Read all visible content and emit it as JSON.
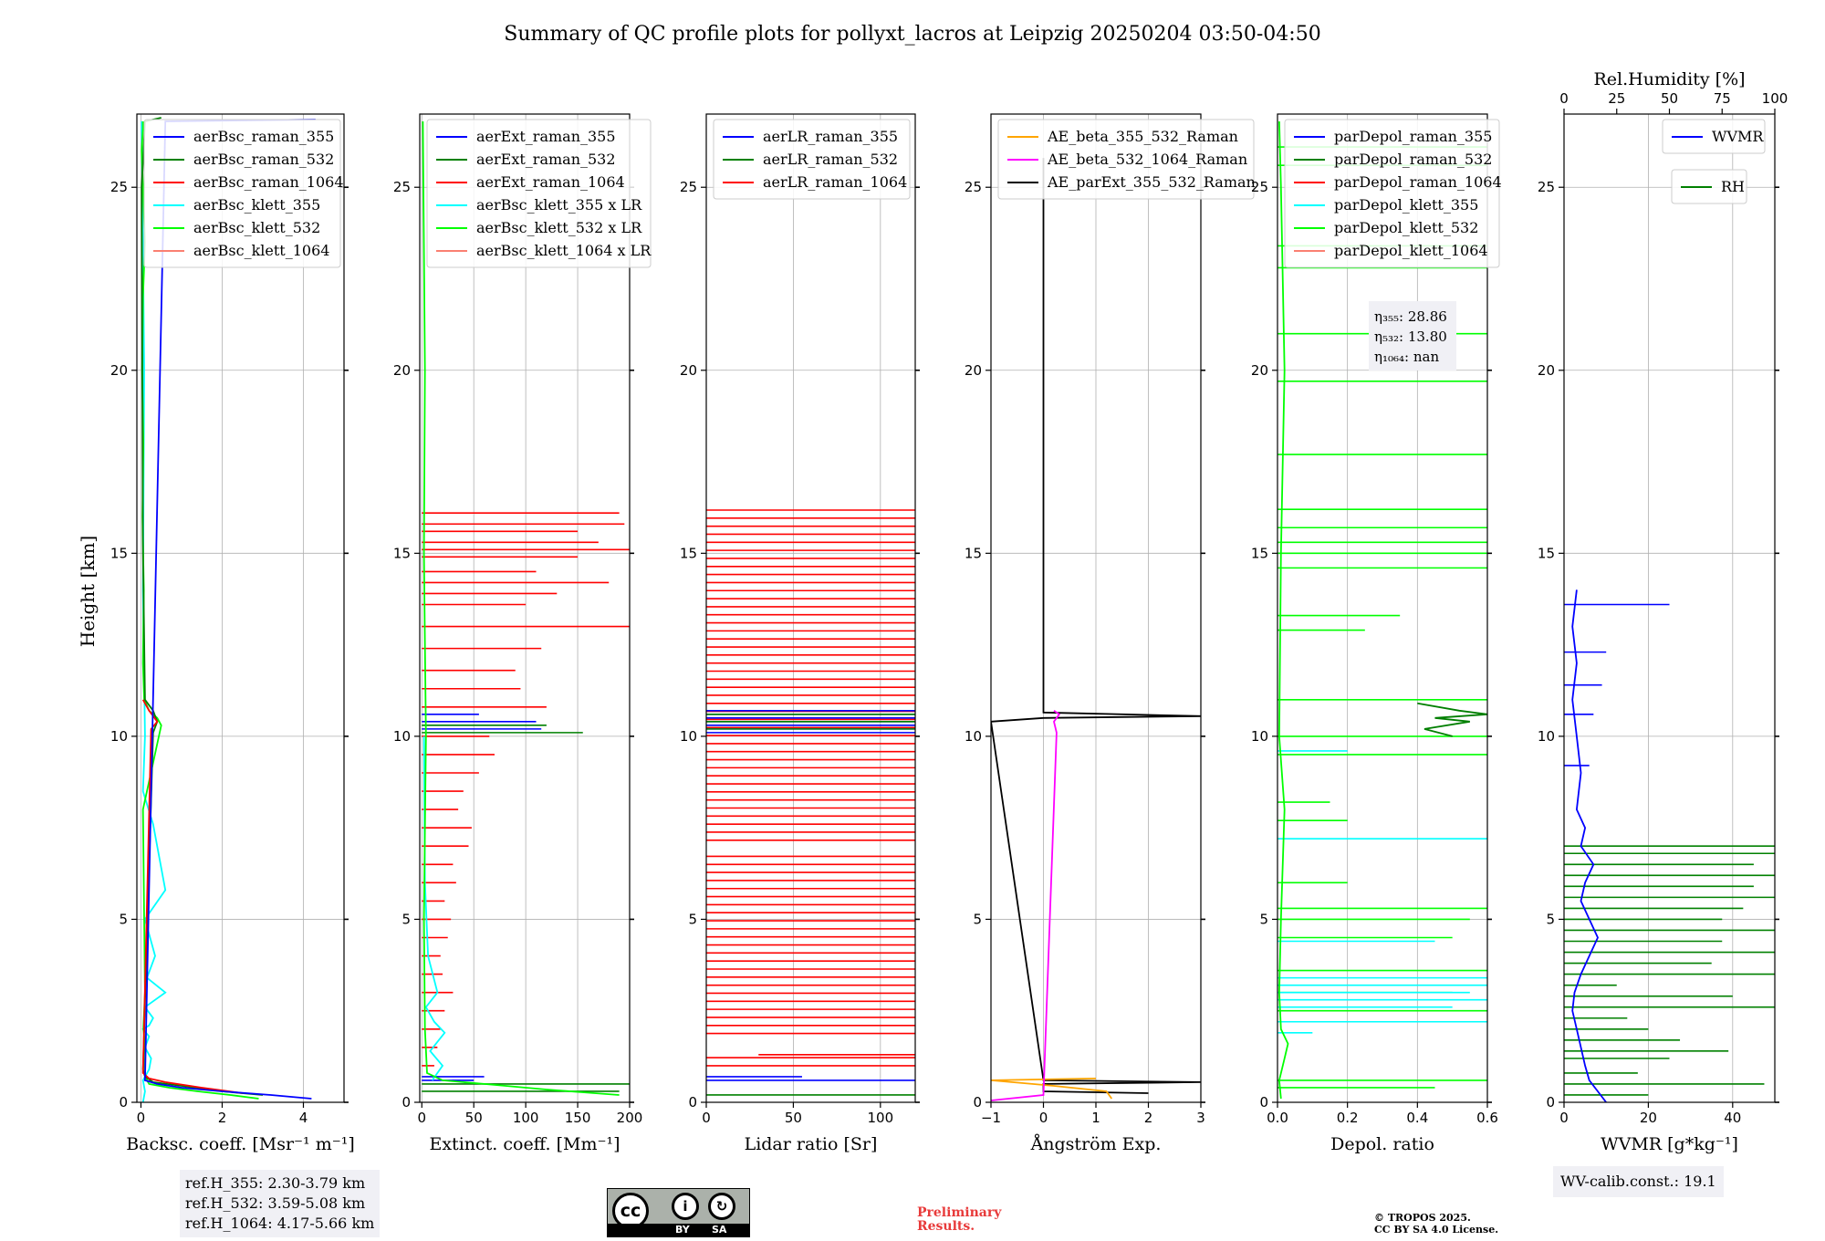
{
  "title": "Summary of QC profile plots for pollyxt_lacros at Leipzig 20250204 03:50-04:50",
  "ylabel": "Height [km]",
  "colors": {
    "blue": "#0000ff",
    "green": "#008000",
    "red": "#ff0000",
    "cyan": "#00ffff",
    "lime": "#00ff00",
    "salmon": "#fa8072",
    "orange": "#ffa500",
    "magenta": "#ff00ff",
    "black": "#000000",
    "darkgreen": "#007f00"
  },
  "chart_data": [
    {
      "type": "line",
      "id": "bsc",
      "xlabel": "Backsc. coeff. [Msr⁻¹ m⁻¹]",
      "xlim": [
        -0.1,
        5
      ],
      "ylim": [
        0,
        27
      ],
      "xticks": [
        0,
        2,
        4
      ],
      "xticklabels": [
        "0",
        "2",
        "4"
      ],
      "yticks": [
        0,
        5,
        10,
        15,
        20,
        25
      ],
      "yticklabels": [
        "0",
        "5",
        "10",
        "15",
        "20",
        "25"
      ],
      "legend": [
        "aerBsc_raman_355",
        "aerBsc_raman_532",
        "aerBsc_raman_1064",
        "aerBsc_klett_355",
        "aerBsc_klett_532",
        "aerBsc_klett_1064"
      ],
      "legend_colors": [
        "blue",
        "green",
        "red",
        "cyan",
        "lime",
        "salmon"
      ],
      "series": [
        {
          "name": "aerBsc_klett_355",
          "color": "cyan",
          "x": [
            0.05,
            0.1,
            0.05,
            0.2,
            0.25,
            0.1,
            0.2,
            0.05,
            0.2,
            0.3,
            0.1,
            0.6,
            0.15,
            0.35,
            0.1,
            0.6,
            0.3,
            0.05,
            0.1,
            0.05,
            0.08,
            0.02
          ],
          "y": [
            0,
            0.3,
            0.6,
            0.9,
            1.2,
            1.5,
            1.8,
            2.0,
            2.1,
            2.3,
            2.6,
            3.0,
            3.4,
            4.0,
            5.0,
            5.8,
            7.6,
            8.5,
            10.0,
            14.0,
            20.0,
            26.8
          ]
        },
        {
          "name": "aerBsc_klett_532",
          "color": "lime",
          "x": [
            2.9,
            2.2,
            1.4,
            0.7,
            0.2,
            0.15,
            0.1,
            0.07,
            0.1,
            0.06,
            0.1,
            0.08,
            0.05,
            0.5,
            0.4,
            0.2,
            0.08,
            0.05,
            0.07,
            0.04,
            0.06,
            0.03,
            0.05,
            0.1,
            0.05,
            0.02,
            0.05,
            0.05
          ],
          "y": [
            0.1,
            0.2,
            0.3,
            0.4,
            0.5,
            0.6,
            0.8,
            1.2,
            1.6,
            2.0,
            3.0,
            5.0,
            8.0,
            10.3,
            10.5,
            10.7,
            11.0,
            12.0,
            14.0,
            16.0,
            18.0,
            20.0,
            22.0,
            23.5,
            25.0,
            26.0,
            26.6,
            26.8
          ]
        },
        {
          "name": "aerBsc_raman_532",
          "color": "green",
          "x": [
            3.0,
            2.0,
            1.0,
            0.3,
            0.1,
            0.05,
            0.3,
            0.4,
            0.3,
            0.1,
            0.05,
            0.02,
            0.1,
            0.5
          ],
          "y": [
            0.2,
            0.3,
            0.45,
            0.55,
            0.7,
            0.9,
            10.1,
            10.4,
            10.7,
            11.0,
            15.0,
            25.0,
            26.8,
            26.9
          ]
        },
        {
          "name": "aerBsc_raman_1064",
          "color": "red",
          "x": [
            2.5,
            1.5,
            0.6,
            0.2,
            0.05,
            0.25,
            0.4,
            0.2,
            0.05
          ],
          "y": [
            0.25,
            0.4,
            0.55,
            0.65,
            0.8,
            10.2,
            10.4,
            10.7,
            11.0
          ]
        },
        {
          "name": "aerBsc_raman_355",
          "color": "blue",
          "x": [
            4.2,
            3.2,
            2.0,
            1.0,
            0.4,
            0.1,
            0.6,
            4.3
          ],
          "y": [
            0.1,
            0.2,
            0.3,
            0.4,
            0.5,
            0.6,
            26.8,
            26.85
          ]
        }
      ]
    },
    {
      "type": "line",
      "id": "ext",
      "xlabel": "Extinct. coeff. [Mm⁻¹]",
      "xlim": [
        -2,
        200
      ],
      "ylim": [
        0,
        27
      ],
      "xticks": [
        0,
        50,
        100,
        150,
        200
      ],
      "xticklabels": [
        "0",
        "50",
        "100",
        "150",
        "200"
      ],
      "yticks": [
        0,
        5,
        10,
        15,
        20,
        25
      ],
      "yticklabels": [
        "0",
        "5",
        "10",
        "15",
        "20",
        "25"
      ],
      "legend": [
        "aerExt_raman_355",
        "aerExt_raman_532",
        "aerExt_raman_1064",
        "aerBsc_klett_355 x LR",
        "aerBsc_klett_532 x LR",
        "aerBsc_klett_1064 x LR"
      ],
      "legend_colors": [
        "blue",
        "green",
        "red",
        "cyan",
        "lime",
        "salmon"
      ],
      "series": [
        {
          "name": "aerBsc_klett_355 x LR",
          "color": "cyan",
          "x": [
            10,
            20,
            8,
            22,
            12,
            4,
            15,
            6,
            3,
            2
          ],
          "y": [
            0.6,
            1.0,
            1.4,
            1.9,
            2.2,
            2.6,
            3.0,
            4.0,
            6.0,
            10.0
          ]
        },
        {
          "name": "aerBsc_klett_532 x LR",
          "color": "lime",
          "x": [
            190,
            120,
            60,
            20,
            5,
            3,
            2,
            4,
            2,
            3,
            1
          ],
          "y": [
            0.2,
            0.35,
            0.5,
            0.6,
            0.8,
            2.0,
            5.0,
            10.0,
            15.0,
            20.0,
            26.8
          ]
        }
      ],
      "spikes": [
        {
          "color": "red",
          "y": [
            16.1,
            15.8,
            15.6,
            15.3,
            15.1,
            14.9,
            14.5,
            14.2,
            13.9,
            13.6,
            13.0,
            12.4,
            11.8,
            11.3,
            10.8,
            10.0,
            9.5,
            9.0,
            8.5,
            8.0,
            7.5,
            7.0,
            6.5,
            6.0,
            5.5,
            5.0,
            4.5,
            4.0,
            3.5,
            3.0,
            2.5,
            2.0,
            1.5,
            1.0
          ],
          "x": [
            190,
            195,
            150,
            170,
            200,
            150,
            110,
            180,
            130,
            100,
            200,
            115,
            90,
            95,
            120,
            65,
            70,
            55,
            40,
            35,
            48,
            45,
            30,
            33,
            22,
            28,
            25,
            18,
            20,
            30,
            22,
            18,
            15,
            12
          ]
        },
        {
          "color": "blue",
          "y": [
            10.6,
            10.4,
            10.2,
            0.7,
            0.6
          ],
          "x": [
            55,
            110,
            115,
            60,
            50
          ]
        },
        {
          "color": "green",
          "y": [
            10.1,
            10.3,
            0.5,
            0.3
          ],
          "x": [
            155,
            120,
            200,
            190
          ]
        }
      ]
    },
    {
      "type": "line",
      "id": "lr",
      "xlabel": "Lidar ratio [Sr]",
      "xlim": [
        0,
        120
      ],
      "ylim": [
        0,
        27
      ],
      "xticks": [
        0,
        50,
        100
      ],
      "xticklabels": [
        "0",
        "50",
        "100"
      ],
      "yticks": [
        0,
        5,
        10,
        15,
        20,
        25
      ],
      "yticklabels": [
        "0",
        "5",
        "10",
        "15",
        "20",
        "25"
      ],
      "legend": [
        "aerLR_raman_355",
        "aerLR_raman_532",
        "aerLR_raman_1064"
      ],
      "legend_colors": [
        "blue",
        "green",
        "red"
      ],
      "hbands": [
        {
          "color": "red",
          "from": 1.0,
          "to": 16.2,
          "step": 0.22,
          "skip": [
            [
              6.9,
              7.1
            ],
            [
              1.4,
              1.8
            ]
          ]
        },
        {
          "color": "blue",
          "from": 10.1,
          "to": 10.7,
          "step": 0.1
        },
        {
          "color": "green",
          "from": 10.2,
          "to": 10.6,
          "step": 0.2
        }
      ],
      "singles": [
        {
          "color": "red",
          "y": 1.3,
          "x0": 30,
          "x1": 120
        },
        {
          "color": "blue",
          "y": 0.6,
          "x0": 0,
          "x1": 120
        },
        {
          "color": "blue",
          "y": 0.7,
          "x0": 0,
          "x1": 55
        },
        {
          "color": "green",
          "y": 0.2,
          "x0": 0,
          "x1": 120
        }
      ]
    },
    {
      "type": "line",
      "id": "ae",
      "xlabel": "Ångström Exp.",
      "xlim": [
        -1,
        3
      ],
      "ylim": [
        0,
        27
      ],
      "xticks": [
        -1,
        0,
        1,
        2,
        3
      ],
      "xticklabels": [
        "−1",
        "0",
        "1",
        "2",
        "3"
      ],
      "yticks": [
        0,
        5,
        10,
        15,
        20,
        25
      ],
      "yticklabels": [
        "0",
        "5",
        "10",
        "15",
        "20",
        "25"
      ],
      "legend": [
        "AE_beta_355_532_Raman",
        "AE_beta_532_1064_Raman",
        "AE_parExt_355_532_Raman"
      ],
      "legend_colors": [
        "orange",
        "magenta",
        "black"
      ],
      "series": [
        {
          "name": "AE_parExt_355_532_Raman",
          "color": "black",
          "x": [
            2.0,
            0.0,
            0.0,
            3.0,
            0.0,
            -1.0,
            0.0,
            3.0,
            0.0,
            0.0
          ],
          "y": [
            0.25,
            0.3,
            0.5,
            0.55,
            0.6,
            10.4,
            10.5,
            10.55,
            10.65,
            25.8
          ]
        },
        {
          "name": "AE_beta_355_532_Raman",
          "color": "orange",
          "x": [
            1.3,
            1.2,
            0.2,
            -1.0,
            1.0
          ],
          "y": [
            0.1,
            0.3,
            0.45,
            0.6,
            0.65
          ]
        },
        {
          "name": "AE_beta_532_1064_Raman",
          "color": "magenta",
          "x": [
            -1.0,
            0.0,
            0.25,
            0.2,
            0.3,
            0.2
          ],
          "y": [
            0.05,
            0.2,
            10.1,
            10.4,
            10.6,
            10.7
          ]
        }
      ]
    },
    {
      "type": "line",
      "id": "depol",
      "xlabel": "Depol. ratio",
      "xlim": [
        0,
        0.6
      ],
      "ylim": [
        0,
        27
      ],
      "xticks": [
        0,
        0.2,
        0.4,
        0.6
      ],
      "xticklabels": [
        "0.0",
        "0.2",
        "0.4",
        "0.6"
      ],
      "yticks": [
        0,
        5,
        10,
        15,
        20,
        25
      ],
      "yticklabels": [
        "0",
        "5",
        "10",
        "15",
        "20",
        "25"
      ],
      "legend": [
        "parDepol_raman_355",
        "parDepol_raman_532",
        "parDepol_raman_1064",
        "parDepol_klett_355",
        "parDepol_klett_532",
        "parDepol_klett_1064"
      ],
      "legend_colors": [
        "blue",
        "green",
        "red",
        "cyan",
        "lime",
        "salmon"
      ],
      "annotation": [
        "η₃₅₅: 28.86",
        "η₅₃₂: 13.80",
        "η₁₀₆₄: nan"
      ],
      "series": [
        {
          "name": "parDepol_klett_532",
          "color": "lime",
          "x": [
            0.01,
            0.005,
            0.02,
            0.03,
            0.01,
            0.005,
            0.01,
            0.02,
            0.005,
            0.01,
            0.02,
            0.01,
            0.005
          ],
          "y": [
            0.1,
            0.6,
            1.2,
            1.6,
            2.0,
            3.0,
            5.0,
            8.0,
            10.0,
            15.0,
            20.0,
            25.0,
            26.8
          ]
        },
        {
          "name": "parDepol_raman_532",
          "color": "darkgreen",
          "x": [
            0.5,
            0.42,
            0.55,
            0.45,
            0.6,
            0.52,
            0.4
          ],
          "y": [
            10.0,
            10.2,
            10.4,
            10.5,
            10.6,
            10.7,
            10.9
          ]
        }
      ],
      "spikes": [
        {
          "color": "lime",
          "y": [
            26.1,
            25.6,
            23.4,
            22.8,
            21.0,
            19.7,
            17.7,
            16.2,
            15.7,
            15.3,
            15.0,
            14.6,
            13.3,
            12.9,
            11.0,
            10.0,
            9.5,
            8.2,
            7.7,
            6.0,
            5.3,
            5.0,
            4.5,
            3.6,
            3.0,
            2.5,
            0.6,
            0.4
          ],
          "x": [
            0.6,
            0.6,
            0.6,
            0.6,
            0.6,
            0.6,
            0.6,
            0.6,
            0.6,
            0.6,
            0.6,
            0.6,
            0.35,
            0.25,
            0.6,
            0.6,
            0.6,
            0.15,
            0.2,
            0.2,
            0.6,
            0.55,
            0.5,
            0.6,
            0.5,
            0.6,
            0.6,
            0.45
          ]
        },
        {
          "color": "cyan",
          "y": [
            9.6,
            7.2,
            4.4,
            3.4,
            3.2,
            3.0,
            2.8,
            2.6,
            2.2,
            1.9
          ],
          "x": [
            0.2,
            0.6,
            0.45,
            0.6,
            0.6,
            0.55,
            0.6,
            0.5,
            0.6,
            0.1
          ]
        }
      ]
    },
    {
      "type": "line",
      "id": "wv",
      "xlabel": "WVMR [g*kg⁻¹]",
      "x2label": "Rel.Humidity [%]",
      "xlim": [
        0,
        50
      ],
      "ylim": [
        0,
        27
      ],
      "x2lim": [
        0,
        100
      ],
      "xticks": [
        0,
        20,
        40
      ],
      "xticklabels": [
        "0",
        "20",
        "40"
      ],
      "x2ticks": [
        0,
        25,
        50,
        75,
        100
      ],
      "x2ticklabels": [
        "0",
        "25",
        "50",
        "75",
        "100"
      ],
      "yticks": [
        0,
        5,
        10,
        15,
        20,
        25
      ],
      "yticklabels": [
        "0",
        "5",
        "10",
        "15",
        "20",
        "25"
      ],
      "legend": [
        "WVMR"
      ],
      "legend_colors": [
        "blue"
      ],
      "legend2": [
        "RH"
      ],
      "legend2_colors": [
        "green"
      ],
      "series": [
        {
          "name": "WVMR",
          "color": "blue",
          "x": [
            10,
            8,
            6,
            5,
            4,
            3,
            2,
            2.5,
            4,
            6,
            8,
            6,
            4,
            5,
            7,
            4,
            5,
            3,
            4,
            3,
            2,
            3,
            2,
            3
          ],
          "y": [
            0,
            0.3,
            0.6,
            1.0,
            1.5,
            2.0,
            2.5,
            3.0,
            3.5,
            4.0,
            4.5,
            5.0,
            5.5,
            6.0,
            6.5,
            7.0,
            7.5,
            8.0,
            9.0,
            10.0,
            11.0,
            12.0,
            13.0,
            14.0
          ]
        }
      ],
      "spikes2": [
        {
          "color": "green",
          "y": [
            0.2,
            0.5,
            0.8,
            1.2,
            1.4,
            1.7,
            2.0,
            2.3,
            2.6,
            2.9,
            3.2,
            3.5,
            3.8,
            4.1,
            4.4,
            4.7,
            5.0,
            5.3,
            5.6,
            5.9,
            6.2,
            6.5,
            6.8,
            7.0
          ],
          "x": [
            40,
            95,
            35,
            50,
            78,
            55,
            40,
            30,
            100,
            80,
            25,
            100,
            70,
            100,
            75,
            100,
            75,
            85,
            100,
            90,
            100,
            90,
            100,
            100
          ]
        },
        {
          "color": "blue",
          "y": [
            13.6,
            12.3,
            11.4,
            10.6,
            9.2
          ],
          "x": [
            50,
            20,
            18,
            14,
            12
          ]
        }
      ]
    }
  ],
  "ref_notes": [
    "ref.H_355: 2.30-3.79 km",
    "ref.H_532: 3.59-5.08 km",
    "ref.H_1064: 4.17-5.66 km"
  ],
  "wv_note": "WV-calib.const.: 19.1",
  "prelim": [
    "Preliminary",
    "Results."
  ],
  "copyright": [
    "© TROPOS 2025.",
    "CC BY SA 4.0 License."
  ],
  "cc_badge": {
    "cc": "cc",
    "by": "BY",
    "sa": "SA"
  }
}
